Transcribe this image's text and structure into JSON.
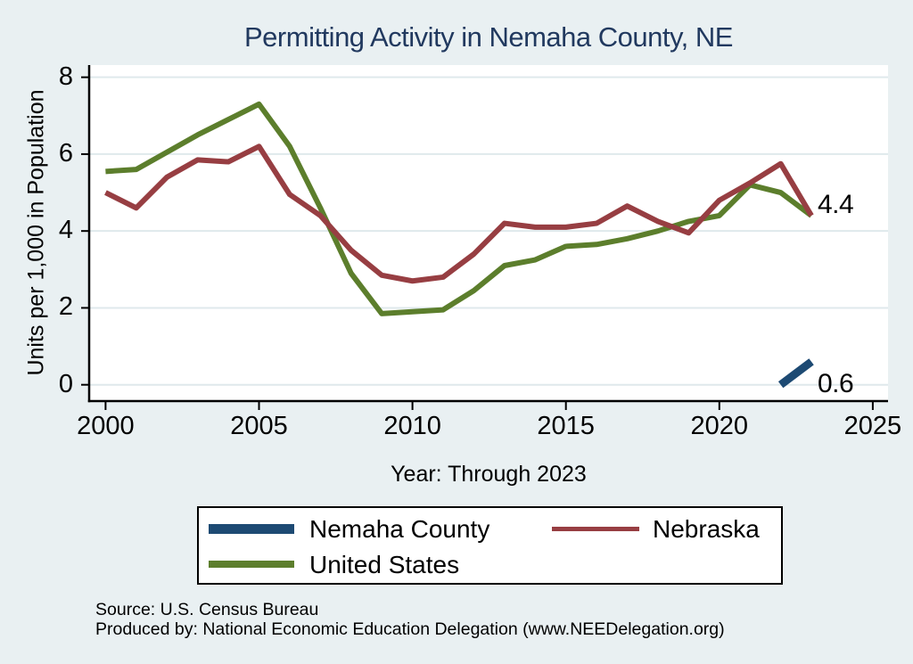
{
  "title": "Permitting Activity in Nemaha County, NE",
  "colors": {
    "background": "#e9f0f2",
    "plot_background": "#ffffff",
    "gridline": "#dfe9ec",
    "axis": "#000000",
    "title_text": "#21395f",
    "nemaha_county": "#1d4a73",
    "nebraska": "#973e42",
    "united_states": "#5c7e2c"
  },
  "chart_data": {
    "type": "line",
    "title": "Permitting Activity in Nemaha County, NE",
    "xlabel": "Year: Through 2023",
    "ylabel": "Units per 1,000 in Population",
    "x_ticks": [
      2000,
      2005,
      2010,
      2015,
      2020,
      2025
    ],
    "y_ticks": [
      0,
      2,
      4,
      6,
      8
    ],
    "xlim": [
      1999.5,
      2025.4
    ],
    "ylim": [
      0,
      8
    ],
    "grid": "horizontal",
    "legend_position": "bottom",
    "draw_order": [
      2,
      1,
      0
    ],
    "series": [
      {
        "id": "nemaha-county",
        "name": "Nemaha County",
        "color": "#1d4a73",
        "width": 9,
        "x": [
          2022,
          2023
        ],
        "values": [
          0.0,
          0.6
        ],
        "end_label": "0.6"
      },
      {
        "id": "nebraska",
        "name": "Nebraska",
        "color": "#973e42",
        "width": 6,
        "x": [
          2000,
          2001,
          2002,
          2003,
          2004,
          2005,
          2006,
          2007,
          2008,
          2009,
          2010,
          2011,
          2012,
          2013,
          2014,
          2015,
          2016,
          2017,
          2018,
          2019,
          2020,
          2021,
          2022,
          2023
        ],
        "values": [
          5.0,
          4.6,
          5.4,
          5.85,
          5.8,
          6.2,
          4.95,
          4.4,
          3.5,
          2.85,
          2.7,
          2.8,
          3.4,
          4.2,
          4.1,
          4.1,
          4.2,
          4.65,
          4.25,
          3.95,
          4.8,
          5.25,
          5.75,
          4.4
        ],
        "end_label": "4.4"
      },
      {
        "id": "united-states",
        "name": "United States",
        "color": "#5c7e2c",
        "width": 6,
        "x": [
          2000,
          2001,
          2002,
          2003,
          2004,
          2005,
          2006,
          2007,
          2008,
          2009,
          2010,
          2011,
          2012,
          2013,
          2014,
          2015,
          2016,
          2017,
          2018,
          2019,
          2020,
          2021,
          2022,
          2023
        ],
        "values": [
          5.55,
          5.6,
          6.05,
          6.5,
          6.9,
          7.3,
          6.2,
          4.6,
          2.9,
          1.85,
          1.9,
          1.95,
          2.45,
          3.1,
          3.25,
          3.6,
          3.65,
          3.8,
          4.0,
          4.25,
          4.4,
          5.2,
          5.0,
          4.4
        ],
        "end_label": ""
      }
    ]
  },
  "legend": {
    "items": [
      {
        "label": "Nemaha County",
        "color": "#1d4a73"
      },
      {
        "label": "Nebraska",
        "color": "#973e42"
      },
      {
        "label": "United States",
        "color": "#5c7e2c"
      }
    ]
  },
  "footer": {
    "source": "Source: U.S. Census Bureau",
    "produced_by": "Produced by: National Economic Education Delegation (www.NEEDelegation.org)"
  }
}
